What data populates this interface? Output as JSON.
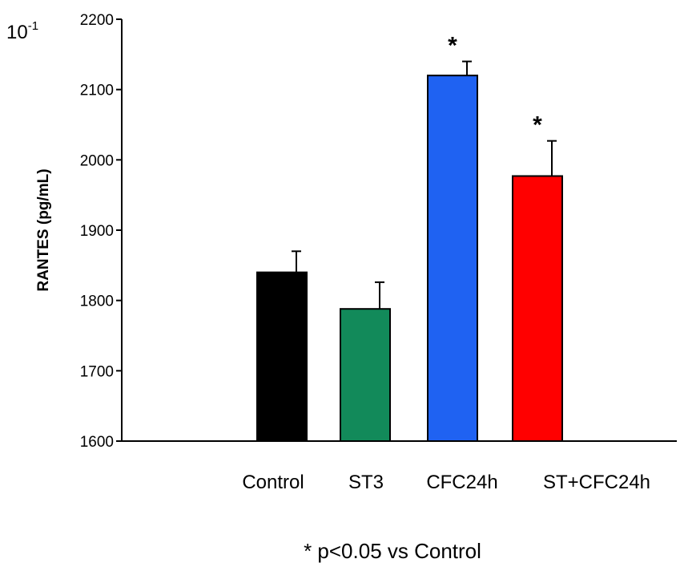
{
  "chart_data": {
    "type": "bar",
    "categories": [
      "Control",
      "ST3",
      "CFC24h",
      "ST+CFC24h"
    ],
    "values": [
      1840,
      1788,
      2120,
      1977
    ],
    "errors": [
      30,
      38,
      20,
      50
    ],
    "colors": [
      "#000000",
      "#128a5a",
      "#1f62f2",
      "#ff0000"
    ],
    "significance": [
      "",
      "",
      "*",
      "*"
    ],
    "ylabel": "RANTES (pg/mL)",
    "ylim": [
      1600,
      2200
    ],
    "yticks": [
      "1600",
      "1700",
      "1800",
      "1900",
      "2000",
      "2100",
      "2200"
    ],
    "scale_base": "10",
    "scale_exp": "-1",
    "footnote": "* p<0.05 vs Control",
    "grid": false
  }
}
